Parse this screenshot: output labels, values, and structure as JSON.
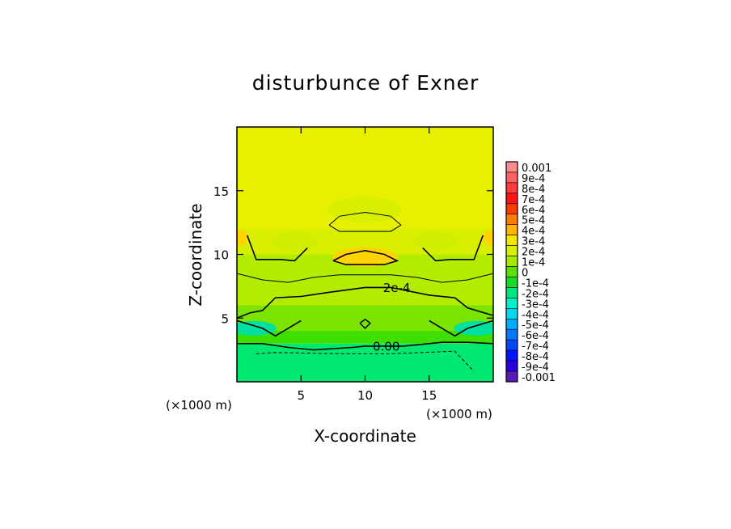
{
  "chart_data": {
    "type": "heatmap",
    "title": "disturbunce of Exner",
    "xlabel": "X-coordinate",
    "ylabel": "Z-coordinate",
    "x_unit_label": "(×1000 m)",
    "xlim": [
      0,
      20
    ],
    "ylim": [
      0,
      20
    ],
    "x_ticks": [
      "5",
      "10",
      "15"
    ],
    "y_ticks": [
      "5",
      "10",
      "15"
    ],
    "contour_labels": [
      "2e-4",
      "0.00"
    ],
    "colorbar": {
      "position": "right",
      "levels": [
        {
          "label": "0.001",
          "color": "#ff8c8c"
        },
        {
          "label": "9e-4",
          "color": "#ff6262"
        },
        {
          "label": "8e-4",
          "color": "#ff3b3b"
        },
        {
          "label": "7e-4",
          "color": "#ff1414"
        },
        {
          "label": "6e-4",
          "color": "#ff3c00"
        },
        {
          "label": "5e-4",
          "color": "#ff7c00"
        },
        {
          "label": "4e-4",
          "color": "#ffb400"
        },
        {
          "label": "3e-4",
          "color": "#f5e600"
        },
        {
          "label": "2e-4",
          "color": "#d8f000"
        },
        {
          "label": "1e-4",
          "color": "#a6ea00"
        },
        {
          "label": "0",
          "color": "#5ce000"
        },
        {
          "label": "-1e-4",
          "color": "#14dc28"
        },
        {
          "label": "-2e-4",
          "color": "#00e682"
        },
        {
          "label": "-3e-4",
          "color": "#00f0c8"
        },
        {
          "label": "-4e-4",
          "color": "#00d7f0"
        },
        {
          "label": "-5e-4",
          "color": "#00aaff"
        },
        {
          "label": "-6e-4",
          "color": "#0078ff"
        },
        {
          "label": "-7e-4",
          "color": "#0046ff"
        },
        {
          "label": "-8e-4",
          "color": "#0014ff"
        },
        {
          "label": "-9e-4",
          "color": "#2a00e0"
        },
        {
          "label": "-0.001",
          "color": "#5a1ab4"
        }
      ]
    },
    "grid": false,
    "field_bands": [
      {
        "z_range": [
          12,
          20
        ],
        "value": 0.0003,
        "color": "#e6f000"
      },
      {
        "z_range": [
          10,
          12
        ],
        "value": 0.00025,
        "color": "#d8f000"
      },
      {
        "z_range": [
          6,
          10
        ],
        "value": 0.0002,
        "color": "#b4ec00"
      },
      {
        "z_range": [
          4,
          6
        ],
        "value": 0.0001,
        "color": "#7ae400"
      },
      {
        "z_range": [
          3,
          4
        ],
        "value": 0,
        "color": "#3fe000"
      },
      {
        "z_range": [
          0,
          3
        ],
        "value": -0.0001,
        "color": "#00e870"
      }
    ],
    "local_max": {
      "x": 10,
      "z": 9.8,
      "value": 0.0004,
      "color": "#ffd400"
    }
  }
}
